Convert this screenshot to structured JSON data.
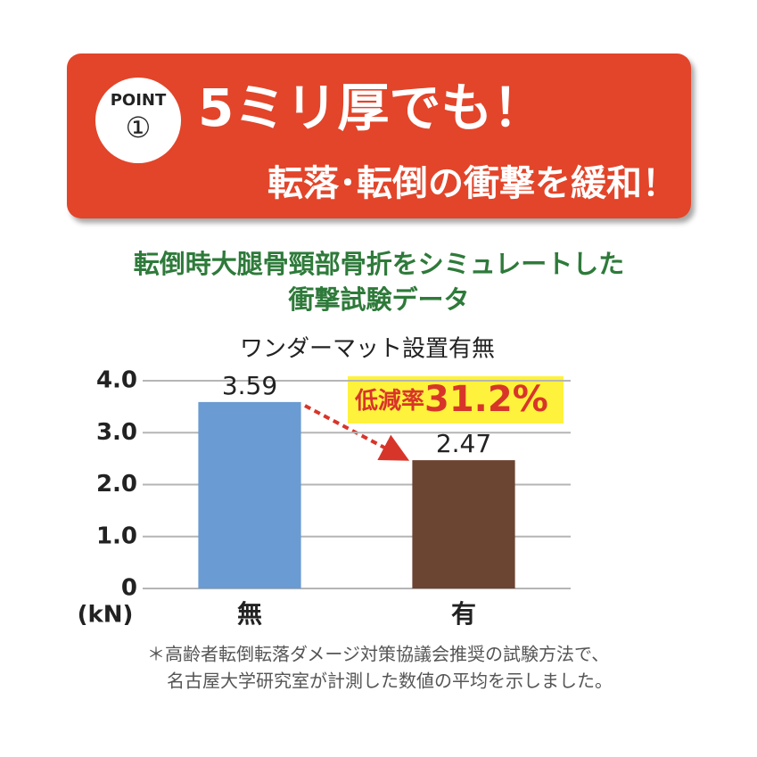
{
  "header": {
    "point_label": "POINT",
    "point_number": "①",
    "headline": "5ミリ厚でも！",
    "subheadline": "転落･転倒の衝撃を緩和！"
  },
  "chart_data": {
    "type": "bar",
    "title": [
      "転倒時大腿骨頸部骨折をシミュレートした",
      "衝撃試験データ"
    ],
    "subtitle": "ワンダーマット設置有無",
    "categories": [
      "無",
      "有"
    ],
    "values": [
      3.59,
      2.47
    ],
    "colors": [
      "#6a9bd2",
      "#6b4432"
    ],
    "ylim": [
      0,
      4
    ],
    "yticks": [
      0,
      {
        "value": 1,
        "label": "1.0"
      },
      {
        "value": 2,
        "label": "2.0"
      },
      {
        "value": 3,
        "label": "3.0"
      },
      {
        "value": 4,
        "label": "4.0"
      }
    ],
    "y_unit": "(kN)",
    "grid": true,
    "annotation": {
      "label": "低減率",
      "value_label": "31.2%"
    },
    "footnote": [
      "＊高齢者転倒転落ダメージ対策協議会推奨の試験方法で、",
      "名古屋大学研究室が計測した数値の平均を示しました。"
    ]
  }
}
